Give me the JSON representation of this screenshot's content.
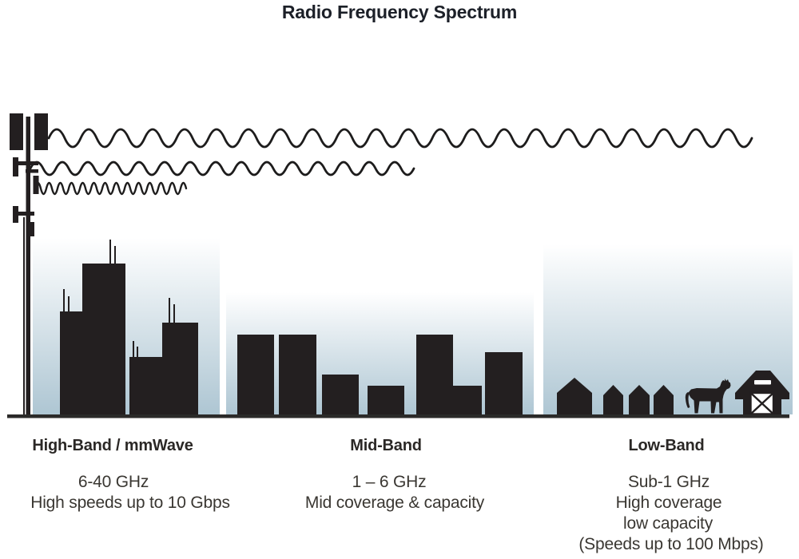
{
  "title": "Radio Frequency Spectrum",
  "colors": {
    "ink": "#231f20",
    "wave": "#1d1c1c",
    "sky_top": "#ffffff",
    "sky_bottom": "#aec6d3",
    "ground": "#2b2a29",
    "title_text": "#1c2028",
    "heading_text": "#2b2826",
    "label_text": "#3a3732"
  },
  "bands": [
    {
      "id": "high-band",
      "heading": "High-Band / mmWave",
      "lines": [
        "6-40 GHz",
        "High speeds up to 10 Gbps"
      ]
    },
    {
      "id": "mid-band",
      "heading": "Mid-Band",
      "lines": [
        "1 – 6 GHz",
        "Mid coverage & capacity"
      ]
    },
    {
      "id": "low-band",
      "heading": "Low-Band",
      "lines": [
        "Sub-1 GHz",
        "High coverage",
        "low capacity",
        "(Speeds up to 100 Mbps)"
      ]
    }
  ],
  "icons": [
    "cell-tower-icon",
    "low-band-wave-icon",
    "mid-band-wave-icon",
    "high-band-wave-icon",
    "city-skyline-icon",
    "town-buildings-icon",
    "rural-houses-icon",
    "cow-icon",
    "barn-icon"
  ]
}
